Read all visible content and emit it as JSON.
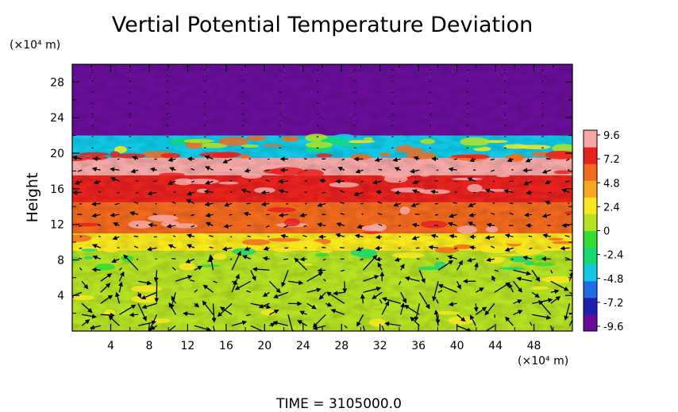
{
  "chart_data": {
    "type": "heatmap",
    "title": "Vertial Potential Temperature Deviation",
    "ylabel": "Height",
    "xlabel": "",
    "x_unit": "(×10⁴ m)",
    "y_unit": "(×10⁴ m)",
    "xlim": [
      0,
      52
    ],
    "ylim": [
      0,
      30
    ],
    "xticks": [
      "4",
      "8",
      "12",
      "16",
      "20",
      "24",
      "28",
      "32",
      "36",
      "40",
      "44",
      "48"
    ],
    "yticks": [
      "4",
      "8",
      "12",
      "16",
      "20",
      "24",
      "28"
    ],
    "colorbar": {
      "min": -9.6,
      "max": 9.6,
      "tick_labels": [
        "9.6",
        "7.2",
        "4.8",
        "2.4",
        "0",
        "-2.4",
        "-4.8",
        "-7.2",
        "-9.6"
      ],
      "colors": [
        "#6a0a9a",
        "#1e20b0",
        "#1e6ce6",
        "#12c8e6",
        "#15d873",
        "#33dd33",
        "#b5e223",
        "#f8e81e",
        "#f7a81e",
        "#f26a1e",
        "#e8211e",
        "#f6a8a8"
      ]
    },
    "layers": [
      {
        "from": 0,
        "to": 9,
        "value": 0.6
      },
      {
        "from": 9,
        "to": 11,
        "value": 2.4
      },
      {
        "from": 11,
        "to": 14.5,
        "value": 4.8
      },
      {
        "from": 14.5,
        "to": 17.5,
        "value": 7.2
      },
      {
        "from": 17.5,
        "to": 19.5,
        "value": 9.6
      },
      {
        "from": 19.5,
        "to": 22,
        "value": -4.8
      },
      {
        "from": 22,
        "to": 30,
        "value": -9.6
      }
    ],
    "grid": false,
    "vectors": "wind arrows overlaid"
  },
  "footer": {
    "time_label": "TIME  =  3105000.0"
  }
}
